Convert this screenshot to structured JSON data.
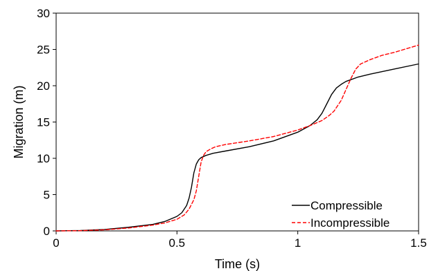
{
  "chart_data": {
    "type": "line",
    "xlabel": "Time (s)",
    "ylabel": "Migration (m)",
    "xlim": [
      0,
      1.5
    ],
    "ylim": [
      0,
      30
    ],
    "x_ticks": [
      0,
      0.5,
      1,
      1.5
    ],
    "x_tick_labels": [
      "0",
      "0.5",
      "1",
      "1.5"
    ],
    "y_ticks": [
      0,
      5,
      10,
      15,
      20,
      25,
      30
    ],
    "y_tick_labels": [
      "0",
      "5",
      "10",
      "15",
      "20",
      "25",
      "30"
    ],
    "grid": false,
    "legend_position": "bottom-right",
    "series": [
      {
        "name": "Compressible",
        "color": "#000000",
        "style": "solid",
        "x": [
          0,
          0.1,
          0.2,
          0.3,
          0.4,
          0.45,
          0.5,
          0.52,
          0.54,
          0.55,
          0.56,
          0.57,
          0.58,
          0.59,
          0.6,
          0.62,
          0.65,
          0.7,
          0.8,
          0.9,
          1.0,
          1.05,
          1.08,
          1.1,
          1.12,
          1.14,
          1.16,
          1.18,
          1.2,
          1.25,
          1.3,
          1.4,
          1.5
        ],
        "y": [
          0,
          0.05,
          0.2,
          0.5,
          0.9,
          1.3,
          2.0,
          2.5,
          3.5,
          4.5,
          6.0,
          8.0,
          9.2,
          9.8,
          10.1,
          10.4,
          10.7,
          11.0,
          11.6,
          12.4,
          13.6,
          14.5,
          15.3,
          16.2,
          17.5,
          18.8,
          19.7,
          20.2,
          20.6,
          21.2,
          21.6,
          22.3,
          23.0
        ]
      },
      {
        "name": "Incompressible",
        "color": "#ff0000",
        "style": "dashed",
        "x": [
          0,
          0.1,
          0.2,
          0.3,
          0.4,
          0.45,
          0.5,
          0.53,
          0.55,
          0.57,
          0.58,
          0.59,
          0.6,
          0.61,
          0.62,
          0.64,
          0.66,
          0.7,
          0.8,
          0.9,
          1.0,
          1.05,
          1.1,
          1.13,
          1.15,
          1.18,
          1.2,
          1.22,
          1.24,
          1.26,
          1.3,
          1.35,
          1.4,
          1.5
        ],
        "y": [
          0,
          0.03,
          0.15,
          0.4,
          0.8,
          1.1,
          1.6,
          2.2,
          3.0,
          4.3,
          5.5,
          7.5,
          9.5,
          10.4,
          10.9,
          11.3,
          11.6,
          11.9,
          12.4,
          13.0,
          13.9,
          14.5,
          15.2,
          15.9,
          16.5,
          18.0,
          19.5,
          21.0,
          22.3,
          23.0,
          23.6,
          24.2,
          24.6,
          25.6
        ]
      }
    ]
  }
}
